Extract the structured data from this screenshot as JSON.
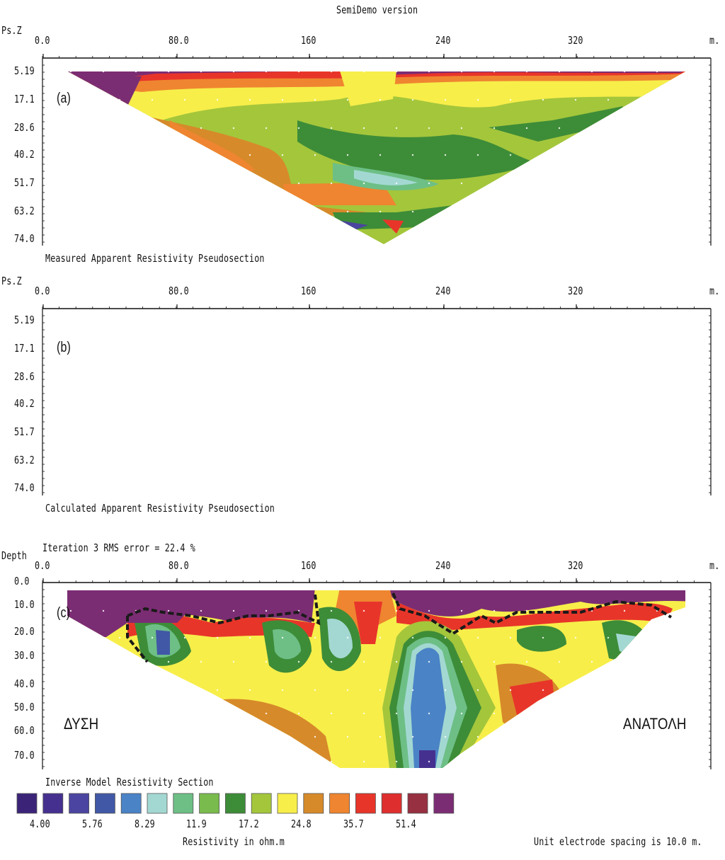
{
  "header": {
    "version_label": "SemiDemo version"
  },
  "x_axis": {
    "ticks": [
      "0.0",
      "80.0",
      "160",
      "240",
      "320"
    ],
    "unit": "m."
  },
  "panels": [
    {
      "id": "a",
      "tag": "(a)",
      "axis_title": "Ps.Z",
      "depth_ticks": [
        "5.19",
        "17.1",
        "28.6",
        "40.2",
        "51.7",
        "63.2",
        "74.0"
      ],
      "caption": "Measured Apparent Resistivity Pseudosection"
    },
    {
      "id": "b",
      "tag": "(b)",
      "axis_title": "Ps.Z",
      "depth_ticks": [
        "5.19",
        "17.1",
        "28.6",
        "40.2",
        "51.7",
        "63.2",
        "74.0"
      ],
      "caption": "Calculated Apparent Resistivity Pseudosection"
    },
    {
      "id": "c",
      "tag": "(c)",
      "axis_title": "Depth",
      "iteration_label": "Iteration 3 RMS error = 22.4 %",
      "depth_ticks": [
        "0.0",
        "10.0",
        "20.0",
        "30.0",
        "40.0",
        "50.0",
        "60.0",
        "70.0"
      ],
      "west_label": "ΔΥΣΗ",
      "east_label": "ΑΝΑΤΟΛΗ"
    }
  ],
  "legend": {
    "title": "Inverse Model Resistivity Section",
    "colors": [
      "#3b2478",
      "#45308f",
      "#4b44a0",
      "#4158a6",
      "#4a83c6",
      "#a3d8d2",
      "#6dbf86",
      "#79bb4d",
      "#3d8c38",
      "#a4c63b",
      "#f7ee4a",
      "#d78a2a",
      "#ef8530",
      "#e8352a",
      "#df2e2e",
      "#973040",
      "#7b2d73"
    ],
    "labels": [
      "4.00",
      "5.76",
      "8.29",
      "11.9",
      "17.2",
      "24.8",
      "35.7",
      "51.4"
    ],
    "unit_label": "Resistivity in ohm.m"
  },
  "footer": {
    "spacing_note": "Unit electrode spacing is 10.0 m."
  },
  "chart_data": [
    {
      "type": "heatmap",
      "title": "Measured Apparent Resistivity Pseudosection",
      "xlabel": "m.",
      "ylabel": "Ps.Z",
      "x_ticks": [
        0,
        80,
        160,
        240,
        320
      ],
      "xlim": [
        0,
        400
      ],
      "y_ticks": [
        5.19,
        17.1,
        28.6,
        40.2,
        51.7,
        63.2,
        74.0
      ],
      "ylim": [
        5.19,
        74.0
      ]
    },
    {
      "type": "heatmap",
      "title": "Calculated Apparent Resistivity Pseudosection",
      "xlabel": "m.",
      "ylabel": "Ps.Z",
      "x_ticks": [
        0,
        80,
        160,
        240,
        320
      ],
      "xlim": [
        0,
        400
      ],
      "y_ticks": [
        5.19,
        17.1,
        28.6,
        40.2,
        51.7,
        63.2,
        74.0
      ],
      "ylim": [
        5.19,
        74.0
      ]
    },
    {
      "type": "heatmap",
      "title": "Inverse Model Resistivity Section",
      "xlabel": "m.",
      "ylabel": "Depth",
      "x_ticks": [
        0,
        80,
        160,
        240,
        320
      ],
      "xlim": [
        0,
        400
      ],
      "y_ticks": [
        0,
        10,
        20,
        30,
        40,
        50,
        60,
        70
      ],
      "ylim": [
        0,
        74
      ],
      "color_scale_ohm_m": [
        4.0,
        5.76,
        8.29,
        11.9,
        17.2,
        24.8,
        35.7,
        51.4
      ],
      "rms_error_percent": 22.4,
      "iteration": 3
    }
  ]
}
